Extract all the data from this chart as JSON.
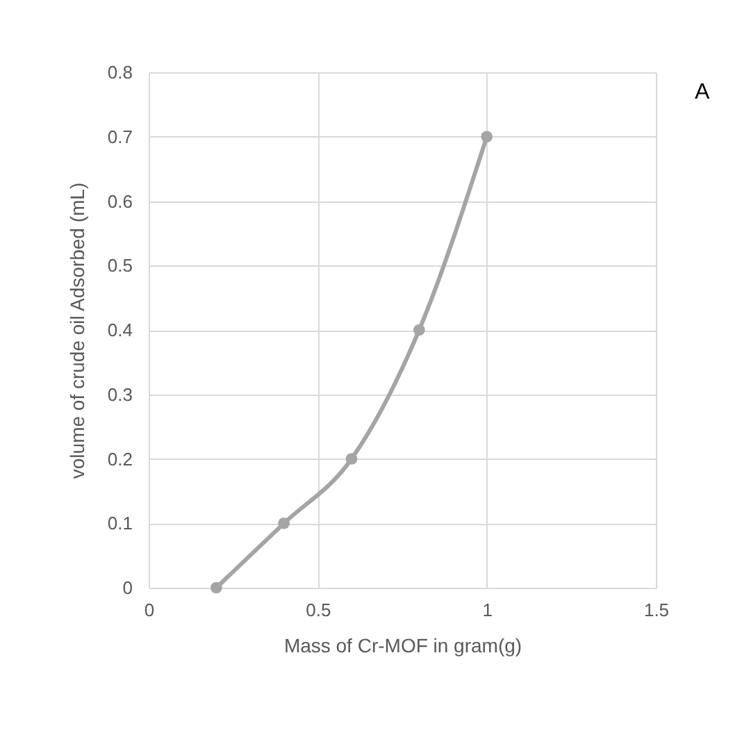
{
  "chart_data": {
    "type": "line",
    "xlabel": "Mass of Cr-MOF  in gram(g)",
    "ylabel": "volume of  crude oil Adsorbed (mL)",
    "annotations": [
      "A"
    ],
    "x": [
      0.2,
      0.4,
      0.6,
      0.8,
      1.0
    ],
    "series": [
      {
        "color": "#a5a5a5",
        "values": [
          0,
          0.1,
          0.2,
          0.4,
          0.7
        ]
      }
    ],
    "xlim": [
      0,
      1.5
    ],
    "xticks": [
      0,
      0.5,
      1,
      1.5
    ],
    "ylim": [
      0,
      0.8
    ],
    "yticks": [
      0,
      0.1,
      0.2,
      0.3,
      0.4,
      0.5,
      0.6,
      0.7,
      0.8
    ],
    "grid": true,
    "marker": "circle",
    "line_style": "solid"
  }
}
